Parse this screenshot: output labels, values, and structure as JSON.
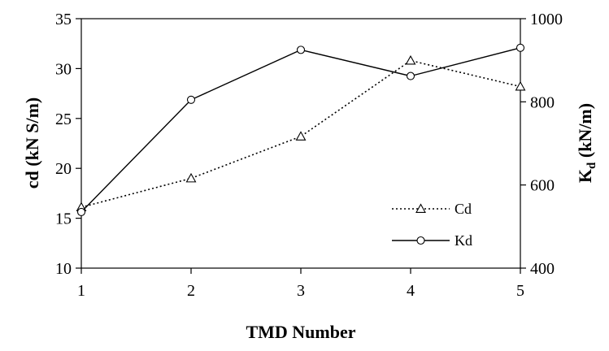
{
  "chart_data": {
    "type": "line",
    "x": [
      1,
      2,
      3,
      4,
      5
    ],
    "xlabel": "TMD Number",
    "xlim": [
      1,
      5
    ],
    "xticks": [
      "1",
      "2",
      "3",
      "4",
      "5"
    ],
    "ylabel_left": "cd (kN S/m)",
    "ylim_left": [
      10,
      35
    ],
    "yticks_left": [
      "10",
      "15",
      "20",
      "25",
      "30",
      "35"
    ],
    "ylabel_right_main": "K",
    "ylabel_right_sub": "d",
    "ylabel_right_unit": " (kN/m)",
    "ylim_right": [
      400,
      1000
    ],
    "yticks_right": [
      "400",
      "600",
      "800",
      "1000"
    ],
    "grid": false,
    "legend_position": "right",
    "series": [
      {
        "name": "Cd",
        "axis": "left",
        "marker": "triangle",
        "line": "dotted",
        "values": [
          16.1,
          19.0,
          23.2,
          30.8,
          28.2
        ]
      },
      {
        "name": "Kd",
        "axis": "right",
        "marker": "circle",
        "line": "solid",
        "values": [
          535,
          805,
          925,
          862,
          930
        ]
      }
    ]
  }
}
